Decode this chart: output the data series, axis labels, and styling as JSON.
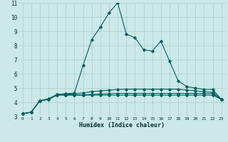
{
  "xlabel": "Humidex (Indice chaleur)",
  "x": [
    0,
    1,
    2,
    3,
    4,
    5,
    6,
    7,
    8,
    9,
    10,
    11,
    12,
    13,
    14,
    15,
    16,
    17,
    18,
    19,
    20,
    21,
    22,
    23
  ],
  "line_main": [
    3.2,
    3.3,
    4.1,
    4.2,
    4.55,
    4.6,
    4.65,
    6.6,
    8.4,
    9.3,
    10.3,
    11.0,
    8.8,
    8.55,
    7.7,
    7.6,
    8.3,
    6.9,
    5.5,
    5.1,
    5.0,
    4.9,
    4.9,
    4.2
  ],
  "line_flat1": [
    3.2,
    3.3,
    4.1,
    4.2,
    4.5,
    4.5,
    4.5,
    4.5,
    4.5,
    4.5,
    4.5,
    4.5,
    4.5,
    4.5,
    4.5,
    4.5,
    4.5,
    4.5,
    4.5,
    4.5,
    4.5,
    4.5,
    4.5,
    4.2
  ],
  "line_flat2": [
    3.2,
    3.3,
    4.1,
    4.2,
    4.52,
    4.52,
    4.52,
    4.52,
    4.55,
    4.58,
    4.6,
    4.62,
    4.62,
    4.62,
    4.62,
    4.62,
    4.62,
    4.62,
    4.62,
    4.62,
    4.62,
    4.62,
    4.62,
    4.2
  ],
  "line_flat3": [
    3.2,
    3.3,
    4.1,
    4.25,
    4.55,
    4.55,
    4.6,
    4.65,
    4.75,
    4.8,
    4.85,
    4.9,
    4.92,
    4.92,
    4.92,
    4.92,
    4.92,
    4.92,
    4.92,
    4.85,
    4.8,
    4.75,
    4.7,
    4.2
  ],
  "bg_color": "#cce8e8",
  "grid_color": "#aacece",
  "line_color": "#006060",
  "ylim": [
    3,
    11
  ],
  "yticks": [
    3,
    4,
    5,
    6,
    7,
    8,
    9,
    10,
    11
  ]
}
